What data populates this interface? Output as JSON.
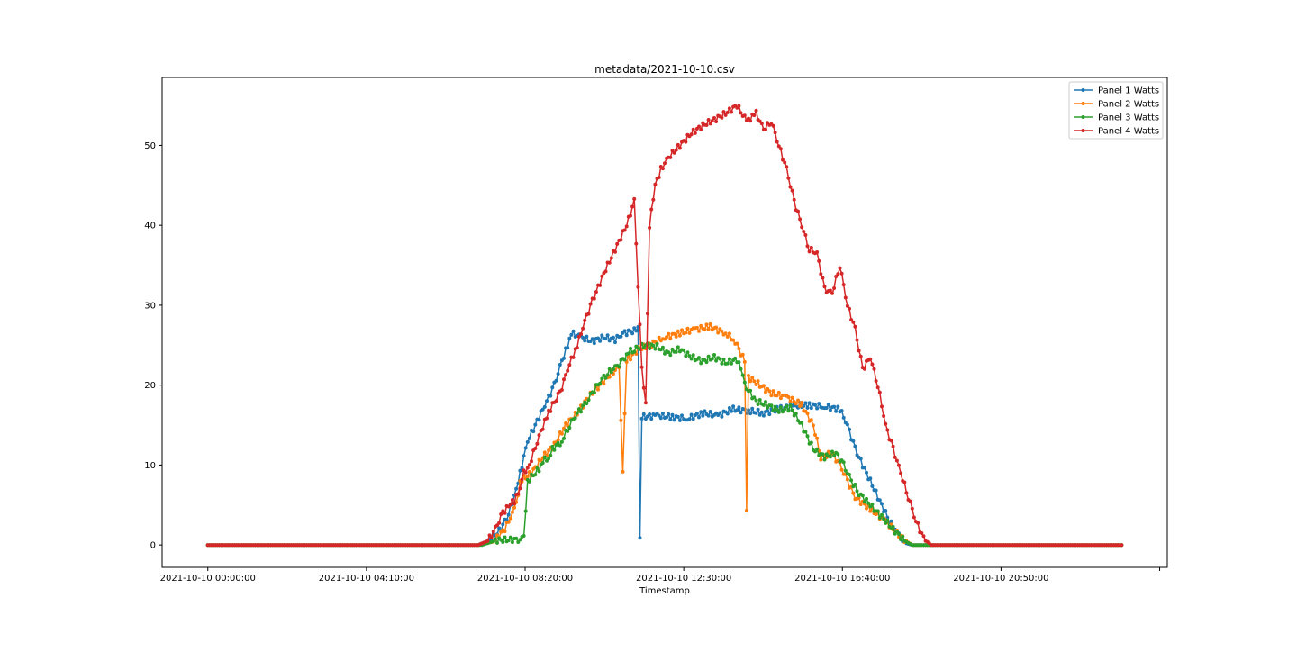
{
  "chart_data": {
    "type": "line",
    "title": "metadata/2021-10-10.csv",
    "xlabel": "Timestamp",
    "ylabel": "",
    "x_unit": "hours",
    "xlim": [
      -1.2,
      25.2
    ],
    "ylim": [
      -2.8,
      58.5
    ],
    "x_ticks": [
      {
        "value": 0,
        "label": "2021-10-10 00:00:00"
      },
      {
        "value": 4.1667,
        "label": "2021-10-10 04:10:00"
      },
      {
        "value": 8.3333,
        "label": "2021-10-10 08:20:00"
      },
      {
        "value": 12.5,
        "label": "2021-10-10 12:30:00"
      },
      {
        "value": 16.6667,
        "label": "2021-10-10 16:40:00"
      },
      {
        "value": 20.8333,
        "label": "2021-10-10 20:50:00"
      },
      {
        "value": 25,
        "label": ""
      }
    ],
    "y_ticks": [
      0,
      10,
      20,
      30,
      40,
      50
    ],
    "grid": false,
    "legend": "top-right",
    "series": [
      {
        "name": "Panel 1 Watts",
        "color": "#1f77b4",
        "points": [
          [
            0,
            0
          ],
          [
            7.1,
            0
          ],
          [
            7.4,
            0.6
          ],
          [
            7.7,
            2
          ],
          [
            7.9,
            4
          ],
          [
            8.05,
            6
          ],
          [
            8.2,
            9
          ],
          [
            8.4,
            13
          ],
          [
            8.7,
            16
          ],
          [
            8.9,
            18
          ],
          [
            9.1,
            20
          ],
          [
            9.3,
            23
          ],
          [
            9.45,
            25
          ],
          [
            9.55,
            26.5
          ],
          [
            9.8,
            26
          ],
          [
            10.1,
            25.5
          ],
          [
            10.4,
            26
          ],
          [
            10.7,
            25.7
          ],
          [
            10.9,
            26.5
          ],
          [
            11.2,
            26.8
          ],
          [
            11.3,
            27.2
          ],
          [
            11.35,
            1.2
          ],
          [
            11.4,
            16
          ],
          [
            11.8,
            16.2
          ],
          [
            12.2,
            16
          ],
          [
            12.6,
            15.8
          ],
          [
            13,
            16.5
          ],
          [
            13.4,
            16.2
          ],
          [
            13.8,
            17
          ],
          [
            14.2,
            16.8
          ],
          [
            14.6,
            16.5
          ],
          [
            15,
            17
          ],
          [
            15.4,
            17.4
          ],
          [
            15.8,
            17.5
          ],
          [
            16.2,
            17.3
          ],
          [
            16.6,
            17
          ],
          [
            16.8,
            15
          ],
          [
            17,
            12
          ],
          [
            17.3,
            9
          ],
          [
            17.6,
            6
          ],
          [
            17.9,
            3
          ],
          [
            18.15,
            1.2
          ],
          [
            18.35,
            0.2
          ],
          [
            18.5,
            0
          ],
          [
            24,
            0
          ]
        ]
      },
      {
        "name": "Panel 2 Watts",
        "color": "#ff7f0e",
        "points": [
          [
            0,
            0
          ],
          [
            7.1,
            0
          ],
          [
            7.5,
            0.4
          ],
          [
            7.8,
            2
          ],
          [
            8.0,
            4
          ],
          [
            8.1,
            5
          ],
          [
            8.2,
            8
          ],
          [
            8.5,
            9
          ],
          [
            8.8,
            11
          ],
          [
            9.1,
            12.5
          ],
          [
            9.4,
            15
          ],
          [
            9.7,
            16.5
          ],
          [
            10.0,
            18.5
          ],
          [
            10.3,
            20
          ],
          [
            10.6,
            21.5
          ],
          [
            10.8,
            22.2
          ],
          [
            10.9,
            9.5
          ],
          [
            11.0,
            23
          ],
          [
            11.3,
            24.5
          ],
          [
            11.6,
            25
          ],
          [
            12.0,
            26
          ],
          [
            12.4,
            26.5
          ],
          [
            12.8,
            27
          ],
          [
            13.2,
            27.3
          ],
          [
            13.6,
            26.5
          ],
          [
            13.85,
            25.5
          ],
          [
            14.1,
            23
          ],
          [
            14.15,
            4
          ],
          [
            14.2,
            21
          ],
          [
            14.5,
            20
          ],
          [
            14.8,
            19
          ],
          [
            15.2,
            18.5
          ],
          [
            15.6,
            17.5
          ],
          [
            15.9,
            15
          ],
          [
            16.1,
            11
          ],
          [
            16.4,
            11.5
          ],
          [
            16.6,
            10
          ],
          [
            16.8,
            8
          ],
          [
            17.0,
            6
          ],
          [
            17.4,
            4.5
          ],
          [
            17.8,
            3
          ],
          [
            18.1,
            1.5
          ],
          [
            18.4,
            0.3
          ],
          [
            18.5,
            0
          ],
          [
            24,
            0
          ]
        ]
      },
      {
        "name": "Panel 3 Watts",
        "color": "#2ca02c",
        "points": [
          [
            0,
            0
          ],
          [
            7.2,
            0
          ],
          [
            7.6,
            0.6
          ],
          [
            8.2,
            0.7
          ],
          [
            8.3,
            0.8
          ],
          [
            8.4,
            8
          ],
          [
            8.7,
            9.5
          ],
          [
            8.8,
            10.5
          ],
          [
            9.0,
            11
          ],
          [
            9.05,
            12
          ],
          [
            9.3,
            13
          ],
          [
            9.5,
            15
          ],
          [
            9.7,
            16.5
          ],
          [
            9.9,
            17.5
          ],
          [
            10.1,
            19
          ],
          [
            10.3,
            20.5
          ],
          [
            10.5,
            21.5
          ],
          [
            10.7,
            22.2
          ],
          [
            10.9,
            23
          ],
          [
            11.0,
            24
          ],
          [
            11.2,
            24.5
          ],
          [
            11.5,
            25
          ],
          [
            11.8,
            24.8
          ],
          [
            12.1,
            24
          ],
          [
            12.4,
            24.5
          ],
          [
            12.7,
            23.5
          ],
          [
            13.0,
            23
          ],
          [
            13.3,
            23.5
          ],
          [
            13.6,
            22.8
          ],
          [
            13.9,
            23.2
          ],
          [
            14.0,
            22
          ],
          [
            14.1,
            20
          ],
          [
            14.4,
            18
          ],
          [
            14.7,
            17.5
          ],
          [
            15.0,
            16.8
          ],
          [
            15.3,
            17.2
          ],
          [
            15.6,
            15
          ],
          [
            15.9,
            12
          ],
          [
            16.2,
            11
          ],
          [
            16.5,
            11.5
          ],
          [
            16.7,
            10
          ],
          [
            16.9,
            8
          ],
          [
            17.1,
            6.5
          ],
          [
            17.4,
            5
          ],
          [
            17.7,
            3.5
          ],
          [
            18.0,
            2
          ],
          [
            18.3,
            0.5
          ],
          [
            18.5,
            0
          ],
          [
            24,
            0
          ]
        ]
      },
      {
        "name": "Panel 4 Watts",
        "color": "#d62728",
        "points": [
          [
            0,
            0
          ],
          [
            7.1,
            0
          ],
          [
            7.35,
            0.5
          ],
          [
            7.55,
            2
          ],
          [
            7.75,
            4
          ],
          [
            7.9,
            5
          ],
          [
            8.05,
            5.5
          ],
          [
            8.2,
            7
          ],
          [
            8.3,
            9
          ],
          [
            8.45,
            10
          ],
          [
            8.65,
            13
          ],
          [
            8.9,
            16
          ],
          [
            9.05,
            17.5
          ],
          [
            9.25,
            19
          ],
          [
            9.45,
            22
          ],
          [
            9.7,
            25
          ],
          [
            9.9,
            28
          ],
          [
            10.1,
            30.5
          ],
          [
            10.4,
            34
          ],
          [
            10.7,
            37
          ],
          [
            11.0,
            40
          ],
          [
            11.2,
            43
          ],
          [
            11.4,
            22
          ],
          [
            11.5,
            18
          ],
          [
            11.6,
            40
          ],
          [
            11.75,
            45
          ],
          [
            11.9,
            47
          ],
          [
            12.1,
            48.5
          ],
          [
            12.4,
            50
          ],
          [
            12.7,
            51.5
          ],
          [
            13.0,
            52.5
          ],
          [
            13.3,
            53.2
          ],
          [
            13.6,
            54
          ],
          [
            13.9,
            55
          ],
          [
            14.15,
            53
          ],
          [
            14.4,
            54
          ],
          [
            14.6,
            52
          ],
          [
            14.8,
            53
          ],
          [
            15.0,
            50
          ],
          [
            15.2,
            47
          ],
          [
            15.4,
            43
          ],
          [
            15.6,
            40
          ],
          [
            15.8,
            37
          ],
          [
            16.0,
            36.5
          ],
          [
            16.2,
            32
          ],
          [
            16.4,
            31.5
          ],
          [
            16.6,
            35
          ],
          [
            16.8,
            30
          ],
          [
            17.0,
            27
          ],
          [
            17.2,
            22
          ],
          [
            17.4,
            23.5
          ],
          [
            17.6,
            20
          ],
          [
            17.8,
            15
          ],
          [
            18.0,
            12
          ],
          [
            18.2,
            9
          ],
          [
            18.4,
            6
          ],
          [
            18.6,
            3
          ],
          [
            18.8,
            0.8
          ],
          [
            19.0,
            0
          ],
          [
            24,
            0
          ]
        ]
      }
    ]
  }
}
